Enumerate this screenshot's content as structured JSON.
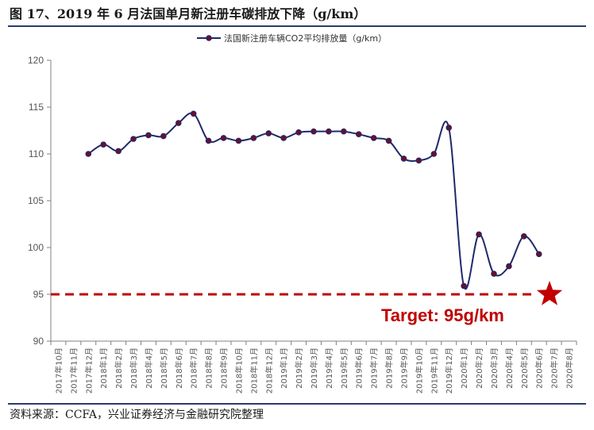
{
  "title": "图 17、2019 年 6 月法国单月新注册车碳排放下降（g/km）",
  "source": "资料来源：CCFA，兴业证券经济与金融研究院整理",
  "colors": {
    "line": "#1f2a6b",
    "marker": "#6a0f2c",
    "target": "#c00000",
    "axis": "#808080",
    "rule": "#2b3a6e"
  },
  "chart_data": {
    "type": "line",
    "legend_position": "top-center",
    "grid": false,
    "ylim": [
      90,
      120
    ],
    "yticks": [
      90,
      95,
      100,
      105,
      110,
      115,
      120
    ],
    "categories": [
      "2017年10月",
      "2017年11月",
      "2017年12月",
      "2018年1月",
      "2018年2月",
      "2018年3月",
      "2018年4月",
      "2018年5月",
      "2018年6月",
      "2018年7月",
      "2018年8月",
      "2018年9月",
      "2018年10月",
      "2018年11月",
      "2018年12月",
      "2019年1月",
      "2019年2月",
      "2019年3月",
      "2019年4月",
      "2019年5月",
      "2019年6月",
      "2019年7月",
      "2019年8月",
      "2019年9月",
      "2019年10月",
      "2019年11月",
      "2019年12月",
      "2020年1月",
      "2020年2月",
      "2020年3月",
      "2020年4月",
      "2020年5月",
      "2020年6月",
      "2020年7月",
      "2020年8月"
    ],
    "series": [
      {
        "name": "法国新注册车辆CO2平均排放量（g/km）",
        "values": [
          null,
          null,
          110.0,
          111.0,
          110.3,
          111.6,
          112.0,
          111.9,
          113.3,
          114.3,
          111.4,
          111.7,
          111.4,
          111.7,
          112.2,
          111.7,
          112.3,
          112.4,
          112.4,
          112.4,
          112.1,
          111.7,
          111.4,
          109.5,
          109.3,
          110.0,
          112.8,
          95.9,
          101.4,
          97.2,
          98.0,
          101.2,
          99.3,
          null,
          null
        ]
      }
    ],
    "target": {
      "value": 95,
      "label": "Target: 95g/km"
    }
  }
}
